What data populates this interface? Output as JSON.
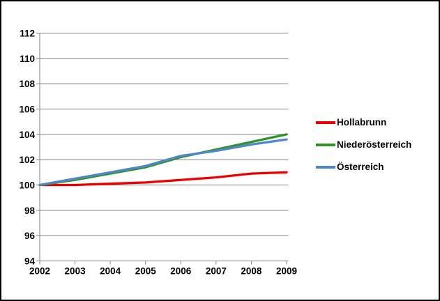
{
  "chart_data": {
    "type": "line",
    "title": "",
    "xlabel": "",
    "ylabel": "",
    "categories": [
      "2002",
      "2003",
      "2004",
      "2005",
      "2006",
      "2007",
      "2008",
      "2009"
    ],
    "series": [
      {
        "name": "Hollabrunn",
        "color": "#EE0000",
        "values": [
          100,
          100.0,
          100.1,
          100.2,
          100.4,
          100.6,
          100.9,
          101.0
        ]
      },
      {
        "name": "Niederösterreich",
        "color": "#2E9428",
        "values": [
          100,
          100.4,
          100.9,
          101.4,
          102.2,
          102.8,
          103.4,
          104.0
        ]
      },
      {
        "name": "Österreich",
        "color": "#4F87C7",
        "values": [
          100,
          100.5,
          101.0,
          101.5,
          102.3,
          102.7,
          103.2,
          103.6
        ]
      }
    ],
    "y_axis": {
      "min": 94,
      "max": 112,
      "step": 2
    },
    "grid": true,
    "legend_position": "right",
    "colors": {
      "background": "#FFFFFF",
      "frame_border": "#000000",
      "axis_and_grid": "#808080",
      "text": "#000000"
    }
  }
}
